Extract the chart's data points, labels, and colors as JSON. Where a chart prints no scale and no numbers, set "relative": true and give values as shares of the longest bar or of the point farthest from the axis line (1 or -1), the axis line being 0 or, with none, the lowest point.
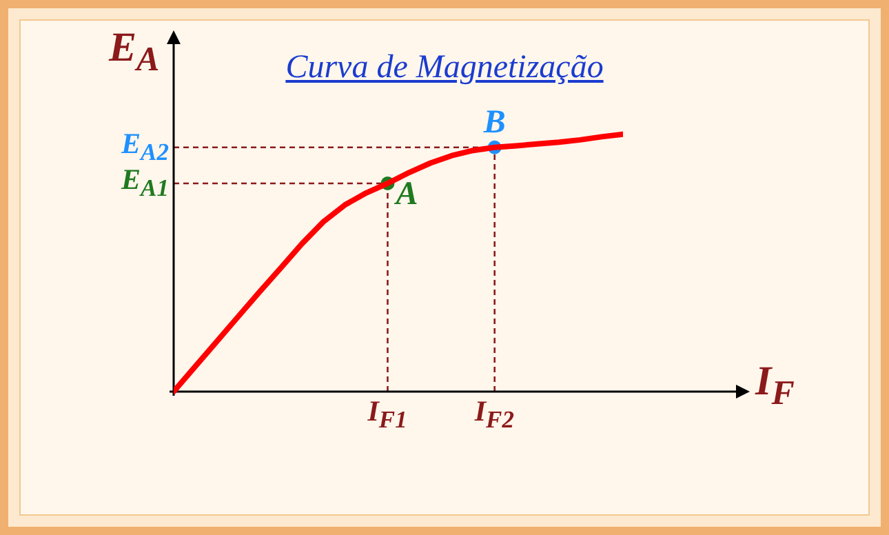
{
  "chart_data": {
    "type": "line",
    "title": "Curva de Magnetização",
    "xlabel": "I$_{F}$",
    "ylabel": "E$_{A}$",
    "relative": true,
    "categories": [
      null,
      null,
      null,
      null,
      null,
      null,
      null,
      null,
      null,
      null,
      "I$_{F1}$",
      null,
      null,
      null,
      null,
      "I$_{F2}$",
      null,
      null,
      null,
      null,
      null,
      null
    ],
    "series": [
      {
        "type": "line",
        "color": "#ff0000",
        "marker": "none",
        "values": [
          0,
          0.097,
          0.193,
          0.29,
          0.386,
          0.48,
          0.575,
          0.66,
          0.725,
          0.772,
          0.809,
          0.851,
          0.888,
          0.917,
          0.937,
          0.949,
          0.955,
          0.962,
          0.969,
          0.978,
          0.99,
          1
        ]
      },
      {
        "type": "scatter",
        "marker": "circle",
        "x": [
          "I$_{F1}$",
          "I$_{F2}$"
        ],
        "values": [
          0.809,
          0.949
        ],
        "colors": [
          "#1f7a1f",
          "#1e90ff"
        ]
      }
    ],
    "ref_lines": [
      {
        "axis": "x",
        "value": "I$_{F1}$",
        "color": "#8b1a1a",
        "line_style": "dashed"
      },
      {
        "axis": "x",
        "value": "I$_{F2}$",
        "color": "#8b1a1a",
        "line_style": "dashed"
      },
      {
        "axis": "y",
        "value": 0.809,
        "label": "E$_{A1}$",
        "color": "#8b1a1a",
        "line_style": "dashed"
      },
      {
        "axis": "y",
        "value": 0.949,
        "label": "E$_{A2}$",
        "color": "#8b1a1a",
        "line_style": "dashed"
      }
    ],
    "annotations": [
      {
        "text": "A",
        "x": "I$_{F1}$",
        "y": 0.809
      },
      {
        "text": "B",
        "x": "I$_{F2}$",
        "y": 0.949
      }
    ]
  }
}
